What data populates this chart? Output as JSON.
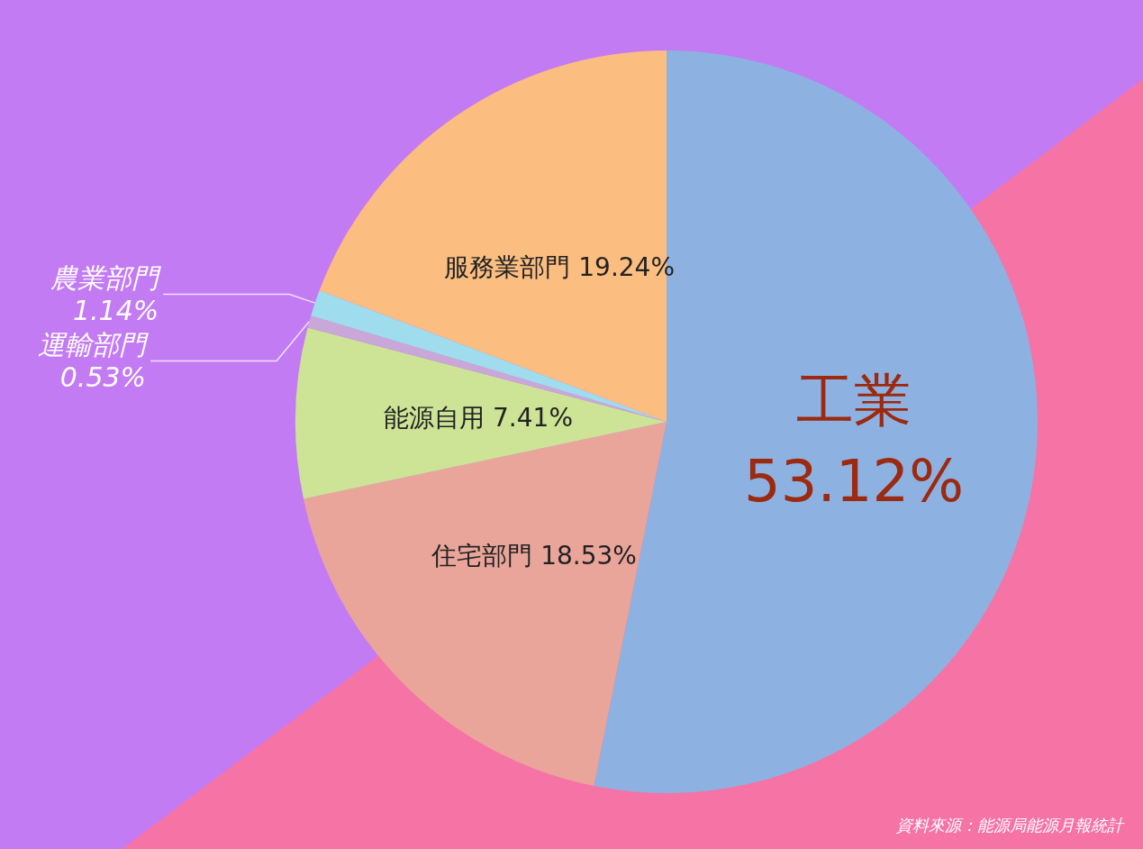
{
  "chart_data": {
    "type": "pie",
    "categories": [
      "工業",
      "住宅部門",
      "能源自用",
      "運輸部門",
      "農業部門",
      "服務業部門"
    ],
    "values": [
      53.12,
      18.53,
      7.41,
      0.53,
      1.14,
      19.24
    ],
    "value_labels": [
      "53.12%",
      "18.53%",
      "7.41%",
      "0.53%",
      "1.14%",
      "19.24%"
    ],
    "colors": [
      "#8db2e2",
      "#eaa59b",
      "#cde396",
      "#c9a7d9",
      "#9fdcee",
      "#fbbd80"
    ],
    "legend": false,
    "annotations": [
      "資料來源：能源局能源月報統計"
    ]
  }
}
